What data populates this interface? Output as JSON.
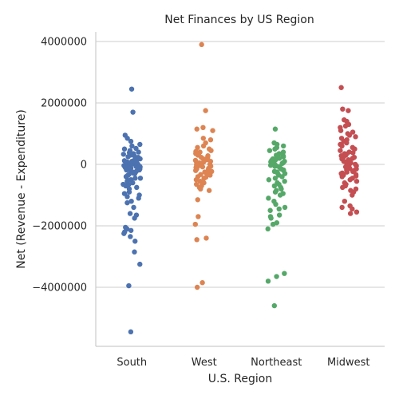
{
  "chart_data": {
    "type": "scatter",
    "title": "Net Finances by US Region",
    "xlabel": "U.S. Region",
    "ylabel": "Net (Revenue - Expenditure)",
    "categories": [
      "South",
      "West",
      "Northeast",
      "Midwest"
    ],
    "ylim": [
      -6000000,
      4400000
    ],
    "yticks": [
      4000000,
      2000000,
      0,
      -2000000,
      -4000000
    ],
    "ytick_labels": [
      "4000000",
      "2000000",
      "0",
      "−2000000",
      "−4000000"
    ],
    "grid": "horizontal",
    "colors": [
      "#4c72b0",
      "#dd8452",
      "#55a868",
      "#c44e52"
    ],
    "series": [
      {
        "values": [
          2450000,
          1700000,
          950000,
          850000,
          750000,
          600000,
          500000,
          400000,
          350000,
          300000,
          250000,
          200000,
          150000,
          120000,
          100000,
          80000,
          60000,
          40000,
          20000,
          0,
          -20000,
          -40000,
          -60000,
          -80000,
          -100000,
          -120000,
          -150000,
          -180000,
          -200000,
          -250000,
          -300000,
          -350000,
          -400000,
          -450000,
          -500000,
          -550000,
          -600000,
          -650000,
          -700000,
          -750000,
          -800000,
          -900000,
          -950000,
          -1000000,
          -1050000,
          -1100000,
          -1200000,
          -1250000,
          -1400000,
          -1600000,
          -1650000,
          -1750000,
          -2050000,
          -2100000,
          -2150000,
          -2200000,
          -2250000,
          -2350000,
          -2500000,
          -2850000,
          -3250000,
          -3950000,
          -5450000,
          50000,
          30000,
          10000,
          -10000,
          -30000,
          -50000,
          70000,
          -70000,
          90000,
          -90000,
          110000,
          -110000,
          180000,
          -180000,
          230000,
          -230000,
          280000,
          -280000,
          330000,
          -330000,
          380000,
          -380000,
          450000,
          -450000,
          520000,
          -520000,
          650000,
          -650000
        ]
      },
      {
        "values": [
          3900000,
          1750000,
          1200000,
          1150000,
          1100000,
          850000,
          800000,
          700000,
          600000,
          550000,
          500000,
          450000,
          400000,
          350000,
          300000,
          250000,
          200000,
          150000,
          100000,
          50000,
          0,
          -50000,
          -100000,
          -150000,
          -200000,
          -250000,
          -300000,
          -350000,
          -400000,
          -450000,
          -500000,
          -550000,
          -600000,
          -650000,
          -700000,
          -750000,
          -800000,
          -850000,
          -1150000,
          -1700000,
          -1950000,
          -2400000,
          -2450000,
          -3850000,
          -4000000,
          80000,
          -80000,
          130000,
          -130000,
          180000,
          -180000,
          230000,
          -230000,
          280000,
          -280000,
          30000,
          -30000,
          60000,
          -60000,
          10000,
          -10000,
          330000,
          -330000,
          420000,
          -420000
        ]
      },
      {
        "values": [
          1150000,
          700000,
          650000,
          600000,
          550000,
          500000,
          450000,
          400000,
          350000,
          300000,
          250000,
          200000,
          150000,
          100000,
          50000,
          0,
          -50000,
          -100000,
          -150000,
          -200000,
          -250000,
          -300000,
          -350000,
          -400000,
          -450000,
          -500000,
          -550000,
          -600000,
          -650000,
          -700000,
          -750000,
          -800000,
          -850000,
          -900000,
          -950000,
          -1000000,
          -1100000,
          -1200000,
          -1300000,
          -1400000,
          -1450000,
          -1500000,
          -1650000,
          -1700000,
          -1750000,
          -1900000,
          -1950000,
          -2100000,
          -3550000,
          -3650000,
          -3800000,
          -4600000,
          80000,
          -80000,
          130000,
          -130000,
          180000,
          -180000,
          230000,
          -230000,
          30000,
          -30000,
          60000,
          -60000,
          280000,
          -280000
        ]
      },
      {
        "values": [
          2500000,
          1800000,
          1750000,
          1450000,
          1400000,
          1300000,
          1250000,
          1200000,
          1100000,
          1050000,
          1000000,
          950000,
          900000,
          850000,
          800000,
          750000,
          700000,
          650000,
          600000,
          550000,
          500000,
          450000,
          400000,
          350000,
          300000,
          250000,
          200000,
          150000,
          100000,
          50000,
          0,
          -50000,
          -100000,
          -150000,
          -200000,
          -250000,
          -300000,
          -350000,
          -400000,
          -450000,
          -500000,
          -550000,
          -600000,
          -650000,
          -700000,
          -750000,
          -800000,
          -850000,
          -900000,
          -1000000,
          -1200000,
          -1350000,
          -1400000,
          -1450000,
          -1550000,
          -1600000,
          80000,
          -80000,
          130000,
          -130000,
          180000,
          -180000,
          230000,
          -230000,
          30000,
          -30000,
          60000,
          -60000,
          280000,
          -280000,
          330000,
          -330000,
          380000,
          -380000
        ]
      }
    ]
  }
}
